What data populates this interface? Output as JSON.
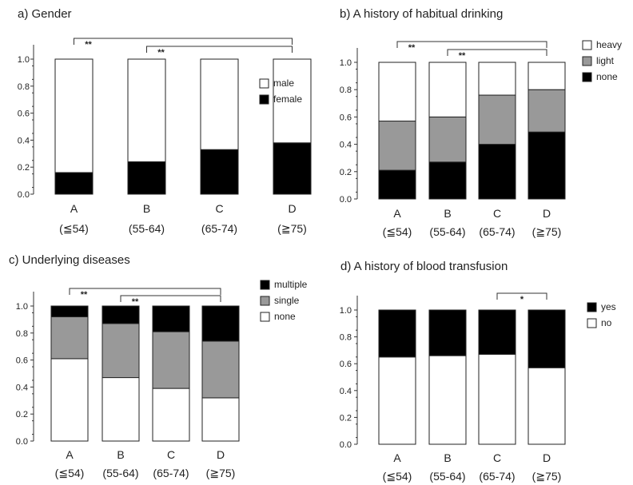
{
  "chart_data": [
    {
      "type": "bar",
      "stacked": true,
      "title": "a) Gender",
      "categories": [
        "A",
        "B",
        "C",
        "D"
      ],
      "category_sublabels": [
        "(≦54)",
        "(55-64)",
        "(65-74)",
        "(≧75)"
      ],
      "series": [
        {
          "name": "female",
          "values": [
            0.16,
            0.24,
            0.33,
            0.38
          ],
          "color": "#000000"
        },
        {
          "name": "male",
          "values": [
            0.84,
            0.76,
            0.67,
            0.62
          ],
          "color": "#ffffff"
        }
      ],
      "legend_order": [
        "male",
        "female"
      ],
      "ylim": [
        0,
        1
      ],
      "yticks": [
        "0.0",
        "0.2",
        "0.4",
        "0.6",
        "0.8",
        "1.0"
      ],
      "legend": "right",
      "grid": false,
      "annotations": [
        {
          "from": "A",
          "to": "D",
          "label": "**"
        },
        {
          "from": "B",
          "to": "D",
          "label": "**"
        }
      ]
    },
    {
      "type": "bar",
      "stacked": true,
      "title": "b) A history of habitual drinking",
      "categories": [
        "A",
        "B",
        "C",
        "D"
      ],
      "category_sublabels": [
        "(≦54)",
        "(55-64)",
        "(65-74)",
        "(≧75)"
      ],
      "series": [
        {
          "name": "none",
          "values": [
            0.21,
            0.27,
            0.4,
            0.49
          ],
          "color": "#000000"
        },
        {
          "name": "light",
          "values": [
            0.36,
            0.33,
            0.36,
            0.31
          ],
          "color": "#999999"
        },
        {
          "name": "heavy",
          "values": [
            0.43,
            0.4,
            0.24,
            0.2
          ],
          "color": "#ffffff"
        }
      ],
      "legend_order": [
        "heavy",
        "light",
        "none"
      ],
      "ylim": [
        0,
        1
      ],
      "yticks": [
        "0.0",
        "0.2",
        "0.4",
        "0.6",
        "0.8",
        "1.0"
      ],
      "legend": "right",
      "grid": false,
      "annotations": [
        {
          "from": "A",
          "to": "D",
          "label": "**"
        },
        {
          "from": "B",
          "to": "D",
          "label": "**"
        }
      ]
    },
    {
      "type": "bar",
      "stacked": true,
      "title": "c) Underlying diseases",
      "categories": [
        "A",
        "B",
        "C",
        "D"
      ],
      "category_sublabels": [
        "(≦54)",
        "(55-64)",
        "(65-74)",
        "(≧75)"
      ],
      "series": [
        {
          "name": "none",
          "values": [
            0.61,
            0.47,
            0.39,
            0.32
          ],
          "color": "#ffffff"
        },
        {
          "name": "single",
          "values": [
            0.31,
            0.4,
            0.42,
            0.42
          ],
          "color": "#999999"
        },
        {
          "name": "multiple",
          "values": [
            0.08,
            0.13,
            0.19,
            0.26
          ],
          "color": "#000000"
        }
      ],
      "legend_order": [
        "multiple",
        "single",
        "none"
      ],
      "ylim": [
        0,
        1
      ],
      "yticks": [
        "0.0",
        "0.2",
        "0.4",
        "0.6",
        "0.8",
        "1.0"
      ],
      "legend": "right",
      "grid": false,
      "annotations": [
        {
          "from": "A",
          "to": "D",
          "label": "**"
        },
        {
          "from": "B",
          "to": "D",
          "label": "**"
        }
      ]
    },
    {
      "type": "bar",
      "stacked": true,
      "title": "d) A history of blood transfusion",
      "categories": [
        "A",
        "B",
        "C",
        "D"
      ],
      "category_sublabels": [
        "(≦54)",
        "(55-64)",
        "(65-74)",
        "(≧75)"
      ],
      "series": [
        {
          "name": "no",
          "values": [
            0.65,
            0.66,
            0.67,
            0.57
          ],
          "color": "#ffffff"
        },
        {
          "name": "yes",
          "values": [
            0.35,
            0.34,
            0.33,
            0.43
          ],
          "color": "#000000"
        }
      ],
      "legend_order": [
        "yes",
        "no"
      ],
      "ylim": [
        0,
        1
      ],
      "yticks": [
        "0.0",
        "0.2",
        "0.4",
        "0.6",
        "0.8",
        "1.0"
      ],
      "legend": "right",
      "grid": false,
      "annotations": [
        {
          "from": "C",
          "to": "D",
          "label": "*"
        }
      ]
    }
  ]
}
